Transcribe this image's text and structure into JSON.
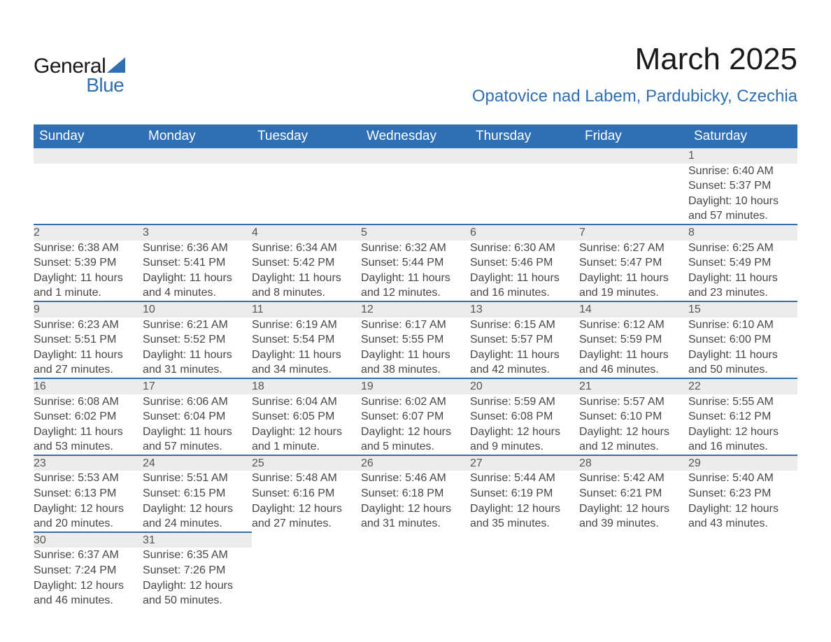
{
  "logo": {
    "word1": "General",
    "word2": "Blue"
  },
  "title": "March 2025",
  "location": "Opatovice nad Labem, Pardubicky, Czechia",
  "colors": {
    "header_bg": "#2f6fb3",
    "header_text": "#ffffff",
    "daynum_bg": "#ececec",
    "row_border": "#2f6fb3",
    "body_text": "#474747",
    "title_text": "#1a1a1a",
    "location_text": "#2f6fb3"
  },
  "dayHeaders": [
    "Sunday",
    "Monday",
    "Tuesday",
    "Wednesday",
    "Thursday",
    "Friday",
    "Saturday"
  ],
  "weeks": [
    [
      null,
      null,
      null,
      null,
      null,
      null,
      {
        "n": "1",
        "sr": "Sunrise: 6:40 AM",
        "ss": "Sunset: 5:37 PM",
        "d1": "Daylight: 10 hours",
        "d2": "and 57 minutes."
      }
    ],
    [
      {
        "n": "2",
        "sr": "Sunrise: 6:38 AM",
        "ss": "Sunset: 5:39 PM",
        "d1": "Daylight: 11 hours",
        "d2": "and 1 minute."
      },
      {
        "n": "3",
        "sr": "Sunrise: 6:36 AM",
        "ss": "Sunset: 5:41 PM",
        "d1": "Daylight: 11 hours",
        "d2": "and 4 minutes."
      },
      {
        "n": "4",
        "sr": "Sunrise: 6:34 AM",
        "ss": "Sunset: 5:42 PM",
        "d1": "Daylight: 11 hours",
        "d2": "and 8 minutes."
      },
      {
        "n": "5",
        "sr": "Sunrise: 6:32 AM",
        "ss": "Sunset: 5:44 PM",
        "d1": "Daylight: 11 hours",
        "d2": "and 12 minutes."
      },
      {
        "n": "6",
        "sr": "Sunrise: 6:30 AM",
        "ss": "Sunset: 5:46 PM",
        "d1": "Daylight: 11 hours",
        "d2": "and 16 minutes."
      },
      {
        "n": "7",
        "sr": "Sunrise: 6:27 AM",
        "ss": "Sunset: 5:47 PM",
        "d1": "Daylight: 11 hours",
        "d2": "and 19 minutes."
      },
      {
        "n": "8",
        "sr": "Sunrise: 6:25 AM",
        "ss": "Sunset: 5:49 PM",
        "d1": "Daylight: 11 hours",
        "d2": "and 23 minutes."
      }
    ],
    [
      {
        "n": "9",
        "sr": "Sunrise: 6:23 AM",
        "ss": "Sunset: 5:51 PM",
        "d1": "Daylight: 11 hours",
        "d2": "and 27 minutes."
      },
      {
        "n": "10",
        "sr": "Sunrise: 6:21 AM",
        "ss": "Sunset: 5:52 PM",
        "d1": "Daylight: 11 hours",
        "d2": "and 31 minutes."
      },
      {
        "n": "11",
        "sr": "Sunrise: 6:19 AM",
        "ss": "Sunset: 5:54 PM",
        "d1": "Daylight: 11 hours",
        "d2": "and 34 minutes."
      },
      {
        "n": "12",
        "sr": "Sunrise: 6:17 AM",
        "ss": "Sunset: 5:55 PM",
        "d1": "Daylight: 11 hours",
        "d2": "and 38 minutes."
      },
      {
        "n": "13",
        "sr": "Sunrise: 6:15 AM",
        "ss": "Sunset: 5:57 PM",
        "d1": "Daylight: 11 hours",
        "d2": "and 42 minutes."
      },
      {
        "n": "14",
        "sr": "Sunrise: 6:12 AM",
        "ss": "Sunset: 5:59 PM",
        "d1": "Daylight: 11 hours",
        "d2": "and 46 minutes."
      },
      {
        "n": "15",
        "sr": "Sunrise: 6:10 AM",
        "ss": "Sunset: 6:00 PM",
        "d1": "Daylight: 11 hours",
        "d2": "and 50 minutes."
      }
    ],
    [
      {
        "n": "16",
        "sr": "Sunrise: 6:08 AM",
        "ss": "Sunset: 6:02 PM",
        "d1": "Daylight: 11 hours",
        "d2": "and 53 minutes."
      },
      {
        "n": "17",
        "sr": "Sunrise: 6:06 AM",
        "ss": "Sunset: 6:04 PM",
        "d1": "Daylight: 11 hours",
        "d2": "and 57 minutes."
      },
      {
        "n": "18",
        "sr": "Sunrise: 6:04 AM",
        "ss": "Sunset: 6:05 PM",
        "d1": "Daylight: 12 hours",
        "d2": "and 1 minute."
      },
      {
        "n": "19",
        "sr": "Sunrise: 6:02 AM",
        "ss": "Sunset: 6:07 PM",
        "d1": "Daylight: 12 hours",
        "d2": "and 5 minutes."
      },
      {
        "n": "20",
        "sr": "Sunrise: 5:59 AM",
        "ss": "Sunset: 6:08 PM",
        "d1": "Daylight: 12 hours",
        "d2": "and 9 minutes."
      },
      {
        "n": "21",
        "sr": "Sunrise: 5:57 AM",
        "ss": "Sunset: 6:10 PM",
        "d1": "Daylight: 12 hours",
        "d2": "and 12 minutes."
      },
      {
        "n": "22",
        "sr": "Sunrise: 5:55 AM",
        "ss": "Sunset: 6:12 PM",
        "d1": "Daylight: 12 hours",
        "d2": "and 16 minutes."
      }
    ],
    [
      {
        "n": "23",
        "sr": "Sunrise: 5:53 AM",
        "ss": "Sunset: 6:13 PM",
        "d1": "Daylight: 12 hours",
        "d2": "and 20 minutes."
      },
      {
        "n": "24",
        "sr": "Sunrise: 5:51 AM",
        "ss": "Sunset: 6:15 PM",
        "d1": "Daylight: 12 hours",
        "d2": "and 24 minutes."
      },
      {
        "n": "25",
        "sr": "Sunrise: 5:48 AM",
        "ss": "Sunset: 6:16 PM",
        "d1": "Daylight: 12 hours",
        "d2": "and 27 minutes."
      },
      {
        "n": "26",
        "sr": "Sunrise: 5:46 AM",
        "ss": "Sunset: 6:18 PM",
        "d1": "Daylight: 12 hours",
        "d2": "and 31 minutes."
      },
      {
        "n": "27",
        "sr": "Sunrise: 5:44 AM",
        "ss": "Sunset: 6:19 PM",
        "d1": "Daylight: 12 hours",
        "d2": "and 35 minutes."
      },
      {
        "n": "28",
        "sr": "Sunrise: 5:42 AM",
        "ss": "Sunset: 6:21 PM",
        "d1": "Daylight: 12 hours",
        "d2": "and 39 minutes."
      },
      {
        "n": "29",
        "sr": "Sunrise: 5:40 AM",
        "ss": "Sunset: 6:23 PM",
        "d1": "Daylight: 12 hours",
        "d2": "and 43 minutes."
      }
    ],
    [
      {
        "n": "30",
        "sr": "Sunrise: 6:37 AM",
        "ss": "Sunset: 7:24 PM",
        "d1": "Daylight: 12 hours",
        "d2": "and 46 minutes."
      },
      {
        "n": "31",
        "sr": "Sunrise: 6:35 AM",
        "ss": "Sunset: 7:26 PM",
        "d1": "Daylight: 12 hours",
        "d2": "and 50 minutes."
      },
      null,
      null,
      null,
      null,
      null
    ]
  ]
}
